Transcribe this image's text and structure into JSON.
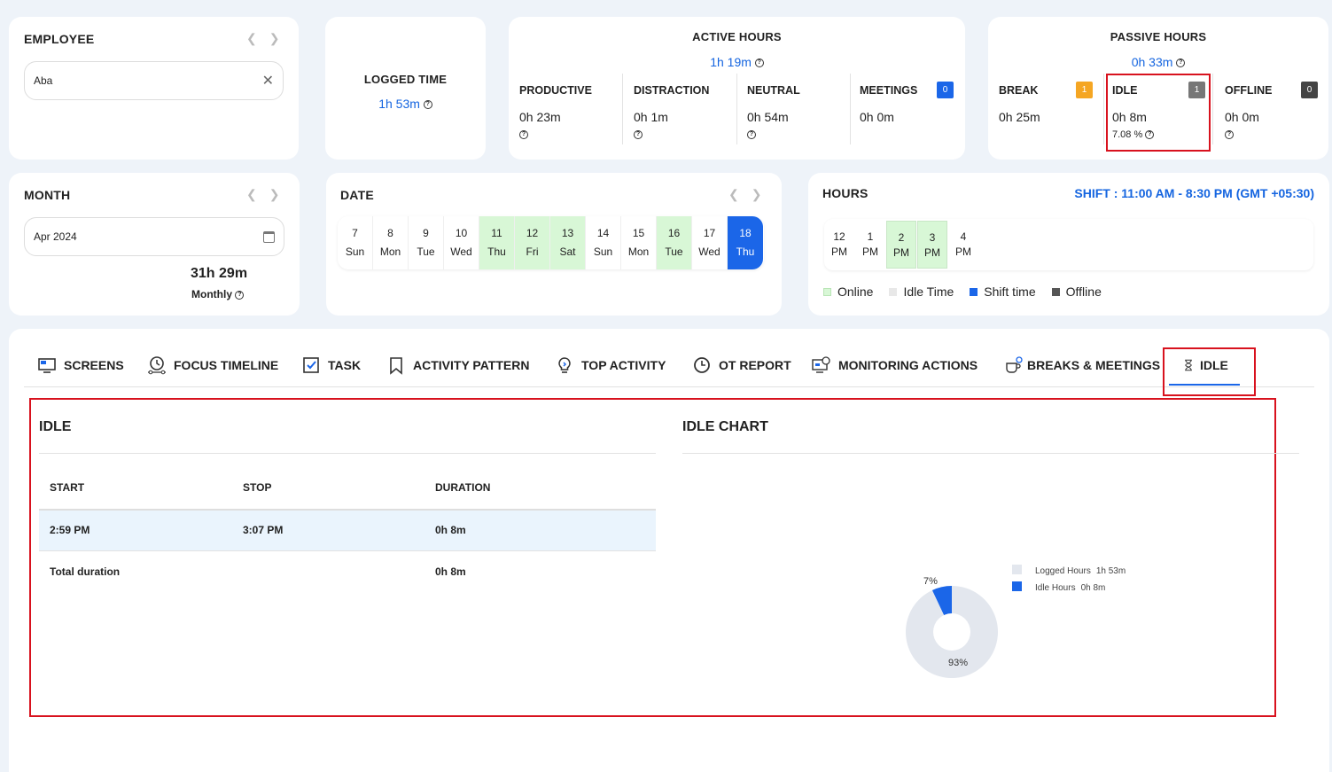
{
  "employee": {
    "title": "EMPLOYEE",
    "value": "Aba"
  },
  "logged": {
    "title": "LOGGED TIME",
    "value": "1h 53m"
  },
  "active": {
    "title": "ACTIVE HOURS",
    "value": "1h 19m",
    "productive": {
      "label": "PRODUCTIVE",
      "value": "0h 23m"
    },
    "distraction": {
      "label": "DISTRACTION",
      "value": "0h 1m"
    },
    "neutral": {
      "label": "NEUTRAL",
      "value": "0h 54m"
    },
    "meetings": {
      "label": "MEETINGS",
      "value": "0h 0m",
      "badge": "0"
    }
  },
  "passive": {
    "title": "PASSIVE HOURS",
    "value": "0h 33m",
    "break": {
      "label": "BREAK",
      "value": "0h 25m",
      "badge": "1"
    },
    "idle": {
      "label": "IDLE",
      "value": "0h 8m",
      "pct": "7.08 %",
      "badge": "1"
    },
    "offline": {
      "label": "OFFLINE",
      "value": "0h 0m",
      "badge": "0"
    }
  },
  "month": {
    "title": "MONTH",
    "value": "Apr 2024",
    "total": "31h 29m",
    "total_label": "Monthly"
  },
  "date": {
    "title": "DATE",
    "days": [
      {
        "n": "7",
        "d": "Sun"
      },
      {
        "n": "8",
        "d": "Mon"
      },
      {
        "n": "9",
        "d": "Tue"
      },
      {
        "n": "10",
        "d": "Wed"
      },
      {
        "n": "11",
        "d": "Thu"
      },
      {
        "n": "12",
        "d": "Fri"
      },
      {
        "n": "13",
        "d": "Sat"
      },
      {
        "n": "14",
        "d": "Sun"
      },
      {
        "n": "15",
        "d": "Mon"
      },
      {
        "n": "16",
        "d": "Tue"
      },
      {
        "n": "17",
        "d": "Wed"
      },
      {
        "n": "18",
        "d": "Thu"
      }
    ]
  },
  "hours": {
    "title": "HOURS",
    "shift": "SHIFT : 11:00 AM - 8:30 PM (GMT +05:30)",
    "slots": [
      {
        "h": "12",
        "p": "PM"
      },
      {
        "h": "1",
        "p": "PM"
      },
      {
        "h": "2",
        "p": "PM"
      },
      {
        "h": "3",
        "p": "PM"
      },
      {
        "h": "4",
        "p": "PM"
      }
    ],
    "legend": [
      "Online",
      "Idle Time",
      "Shift time",
      "Offline"
    ]
  },
  "tabs": [
    "SCREENS",
    "FOCUS TIMELINE",
    "TASK",
    "ACTIVITY PATTERN",
    "TOP ACTIVITY",
    "OT REPORT",
    "MONITORING ACTIONS",
    "BREAKS & MEETINGS",
    "IDLE"
  ],
  "idle_table": {
    "title": "IDLE",
    "headers": [
      "START",
      "STOP",
      "DURATION"
    ],
    "row": {
      "start": "2:59 PM",
      "stop": "3:07 PM",
      "duration": "0h 8m"
    },
    "total_label": "Total duration",
    "total_value": "0h 8m"
  },
  "idle_chart": {
    "title": "IDLE CHART",
    "legend": [
      {
        "name": "Logged Hours",
        "value": "1h 53m"
      },
      {
        "name": "Idle Hours",
        "value": "0h 8m"
      }
    ],
    "pct_idle": "7%",
    "pct_logged": "93%"
  },
  "chart_data": {
    "type": "pie",
    "title": "IDLE CHART",
    "categories": [
      "Logged Hours",
      "Idle Hours"
    ],
    "values": [
      93,
      7
    ],
    "colors": [
      "#e3e7ee",
      "#1b66e8"
    ]
  },
  "colors": {
    "accent": "#1565e0",
    "highlight": "#d8121e",
    "online": "#d8f7d6",
    "meetings_badge": "#1b66e8",
    "break_badge": "#f5a623",
    "idle_badge": "#777777",
    "offline_badge": "#444444"
  }
}
